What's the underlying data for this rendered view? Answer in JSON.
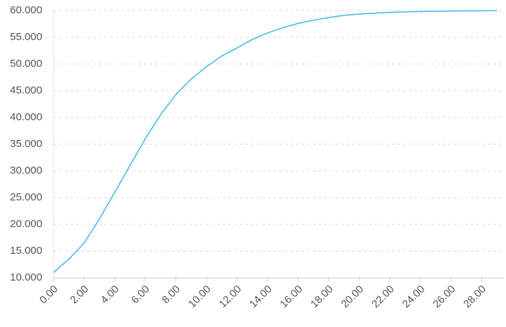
{
  "chart_data": {
    "type": "line",
    "x": [
      0,
      1,
      2,
      3,
      4,
      5,
      6,
      7,
      8,
      9,
      10,
      11,
      12,
      13,
      14,
      15,
      16,
      17,
      18,
      19,
      20,
      21,
      22,
      23,
      24,
      25,
      26,
      27,
      28,
      29
    ],
    "series": [
      {
        "color": "#3bb9e6",
        "values": [
          11,
          13.5,
          16.5,
          21,
          26,
          31,
          36,
          40.5,
          44.3,
          47.2,
          49.5,
          51.5,
          53,
          54.6,
          55.8,
          56.8,
          57.6,
          58.2,
          58.7,
          59.1,
          59.35,
          59.5,
          59.65,
          59.75,
          59.82,
          59.87,
          59.9,
          59.93,
          59.95,
          59.97
        ]
      }
    ],
    "xlim": [
      0,
      29.5
    ],
    "xticks": [
      {
        "value": 0,
        "label": "0.00"
      },
      {
        "value": 2,
        "label": "2.00"
      },
      {
        "value": 4,
        "label": "4.00"
      },
      {
        "value": 6,
        "label": "6.00"
      },
      {
        "value": 8,
        "label": "8.00"
      },
      {
        "value": 10,
        "label": "10.00"
      },
      {
        "value": 12,
        "label": "12.00"
      },
      {
        "value": 14,
        "label": "14.00"
      },
      {
        "value": 16,
        "label": "16.00"
      },
      {
        "value": 18,
        "label": "18.00"
      },
      {
        "value": 20,
        "label": "20.00"
      },
      {
        "value": 22,
        "label": "22.00"
      },
      {
        "value": 24,
        "label": "24.00"
      },
      {
        "value": 26,
        "label": "26.00"
      },
      {
        "value": 28,
        "label": "28.00"
      }
    ],
    "ylim": [
      10,
      60
    ],
    "yticks": [
      {
        "value": 10,
        "label": "10.000"
      },
      {
        "value": 15,
        "label": "15.000"
      },
      {
        "value": 20,
        "label": "20.000"
      },
      {
        "value": 25,
        "label": "25.000"
      },
      {
        "value": 30,
        "label": "30.000"
      },
      {
        "value": 35,
        "label": "35.000"
      },
      {
        "value": 40,
        "label": "40.000"
      },
      {
        "value": 45,
        "label": "45.000"
      },
      {
        "value": 50,
        "label": "50.000"
      },
      {
        "value": 55,
        "label": "55.000"
      },
      {
        "value": 60,
        "label": "60.000"
      }
    ],
    "grid": true
  }
}
